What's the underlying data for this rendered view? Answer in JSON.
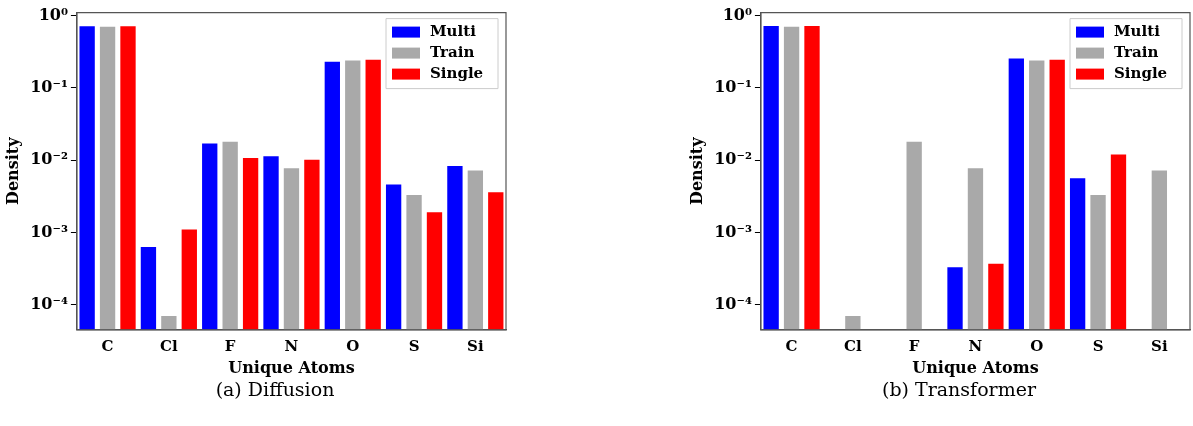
{
  "chart_data": [
    {
      "type": "bar",
      "categories": [
        "C",
        "Cl",
        "F",
        "N",
        "O",
        "S",
        "Si"
      ],
      "xlabel": "Unique Atoms",
      "ylabel": "Density",
      "log": "y",
      "ylim": [
        4.5e-05,
        1.1
      ],
      "yticks": [
        {
          "value": 0.0001,
          "label": "10⁻⁴"
        },
        {
          "value": 0.001,
          "label": "10⁻³"
        },
        {
          "value": 0.01,
          "label": "10⁻²"
        },
        {
          "value": 0.1,
          "label": "10⁻¹"
        },
        {
          "value": 1,
          "label": "10⁰"
        }
      ],
      "series": [
        {
          "name": "Multi",
          "color": "#0000ff",
          "values": [
            0.71,
            0.00063,
            0.017,
            0.0113,
            0.23,
            0.0046,
            0.0083
          ]
        },
        {
          "name": "Train",
          "color": "#a9a9a9",
          "values": [
            0.7,
            7e-05,
            0.018,
            0.0077,
            0.24,
            0.0033,
            0.0072
          ]
        },
        {
          "name": "Single",
          "color": "#ff0000",
          "values": [
            0.71,
            0.0011,
            0.0107,
            0.0101,
            0.245,
            0.0019,
            0.0036
          ]
        }
      ],
      "legend": "top right",
      "grid": false,
      "annotations": [
        "(a) Diffusion"
      ]
    },
    {
      "type": "bar",
      "categories": [
        "C",
        "Cl",
        "F",
        "N",
        "O",
        "S",
        "Si"
      ],
      "xlabel": "Unique Atoms",
      "ylabel": "Density",
      "log": "y",
      "ylim": [
        4.5e-05,
        1.1
      ],
      "yticks": [
        {
          "value": 0.0001,
          "label": "10⁻⁴"
        },
        {
          "value": 0.001,
          "label": "10⁻³"
        },
        {
          "value": 0.01,
          "label": "10⁻²"
        },
        {
          "value": 0.1,
          "label": "10⁻¹"
        },
        {
          "value": 1,
          "label": "10⁰"
        }
      ],
      "series": [
        {
          "name": "Multi",
          "color": "#0000ff",
          "values": [
            0.72,
            null,
            null,
            0.00033,
            0.255,
            0.0056,
            null
          ]
        },
        {
          "name": "Train",
          "color": "#a9a9a9",
          "values": [
            0.7,
            7e-05,
            0.018,
            0.0077,
            0.24,
            0.0033,
            0.0072
          ]
        },
        {
          "name": "Single",
          "color": "#ff0000",
          "values": [
            0.72,
            null,
            null,
            0.00037,
            0.245,
            0.012,
            null
          ]
        }
      ],
      "legend": "top right",
      "grid": false,
      "annotations": [
        "(b) Transformer"
      ]
    }
  ]
}
